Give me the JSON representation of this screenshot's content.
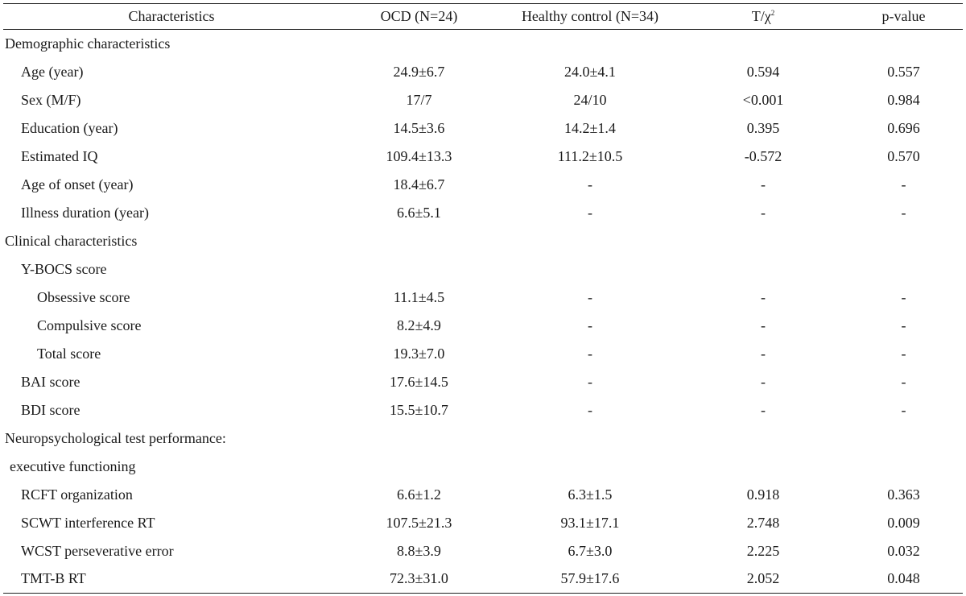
{
  "header": {
    "col1": "Characteristics",
    "col2": "OCD (N=24)",
    "col3": "Healthy control (N=34)",
    "col4_base": "T/χ",
    "col4_sup": "2",
    "col5": "p-value"
  },
  "rows": [
    {
      "label": "Demographic characteristics",
      "ocd": "",
      "hc": "",
      "t": "",
      "p": ""
    },
    {
      "label": "Age (year)",
      "ocd": "24.9±6.7",
      "hc": "24.0±4.1",
      "t": "0.594",
      "p": "0.557"
    },
    {
      "label": "Sex (M/F)",
      "ocd": "17/7",
      "hc": "24/10",
      "t": "<0.001",
      "p": "0.984"
    },
    {
      "label": "Education (year)",
      "ocd": "14.5±3.6",
      "hc": "14.2±1.4",
      "t": "0.395",
      "p": "0.696"
    },
    {
      "label": "Estimated IQ",
      "ocd": "109.4±13.3",
      "hc": "111.2±10.5",
      "t": "-0.572",
      "p": "0.570"
    },
    {
      "label": "Age of onset (year)",
      "ocd": "18.4±6.7",
      "hc": "-",
      "t": "-",
      "p": "-"
    },
    {
      "label": "Illness duration (year)",
      "ocd": "6.6±5.1",
      "hc": "-",
      "t": "-",
      "p": "-"
    },
    {
      "label": "Clinical characteristics",
      "ocd": "",
      "hc": "",
      "t": "",
      "p": ""
    },
    {
      "label": "Y-BOCS score",
      "ocd": "",
      "hc": "",
      "t": "",
      "p": ""
    },
    {
      "label": "Obsessive score",
      "ocd": "11.1±4.5",
      "hc": "-",
      "t": "-",
      "p": "-"
    },
    {
      "label": "Compulsive score",
      "ocd": "8.2±4.9",
      "hc": "-",
      "t": "-",
      "p": "-"
    },
    {
      "label": "Total score",
      "ocd": "19.3±7.0",
      "hc": "-",
      "t": "-",
      "p": "-"
    },
    {
      "label": "BAI score",
      "ocd": "17.6±14.5",
      "hc": "-",
      "t": "-",
      "p": "-"
    },
    {
      "label": "BDI score",
      "ocd": "15.5±10.7",
      "hc": "-",
      "t": "-",
      "p": "-"
    },
    {
      "label": "Neuropsychological test performance:",
      "ocd": "",
      "hc": "",
      "t": "",
      "p": ""
    },
    {
      "label": "executive functioning",
      "ocd": "",
      "hc": "",
      "t": "",
      "p": ""
    },
    {
      "label": "RCFT organization",
      "ocd": "6.6±1.2",
      "hc": "6.3±1.5",
      "t": "0.918",
      "p": "0.363"
    },
    {
      "label": "SCWT interference RT",
      "ocd": "107.5±21.3",
      "hc": "93.1±17.1",
      "t": "2.748",
      "p": "0.009"
    },
    {
      "label": "WCST perseverative error",
      "ocd": "8.8±3.9",
      "hc": "6.7±3.0",
      "t": "2.225",
      "p": "0.032"
    },
    {
      "label": "TMT-B RT",
      "ocd": "72.3±31.0",
      "hc": "57.9±17.6",
      "t": "2.052",
      "p": "0.048"
    }
  ]
}
